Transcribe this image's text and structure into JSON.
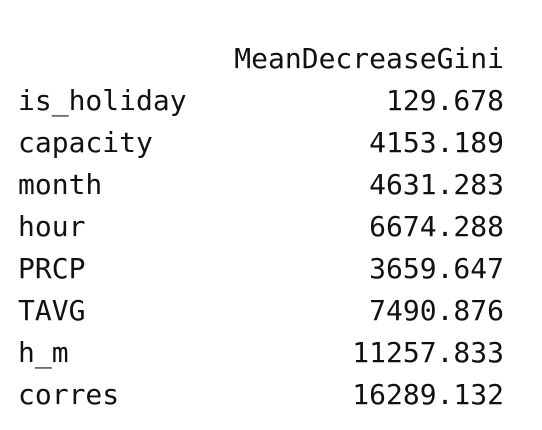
{
  "table": {
    "column_header": "MeanDecreaseGini",
    "rows": [
      {
        "name": "is_holiday",
        "value": "129.678"
      },
      {
        "name": "capacity",
        "value": "4153.189"
      },
      {
        "name": "month",
        "value": "4631.283"
      },
      {
        "name": "hour",
        "value": "6674.288"
      },
      {
        "name": "PRCP",
        "value": "3659.647"
      },
      {
        "name": "TAVG",
        "value": "7490.876"
      },
      {
        "name": "h_m",
        "value": "11257.833"
      },
      {
        "name": "corres",
        "value": "16289.132"
      }
    ]
  }
}
